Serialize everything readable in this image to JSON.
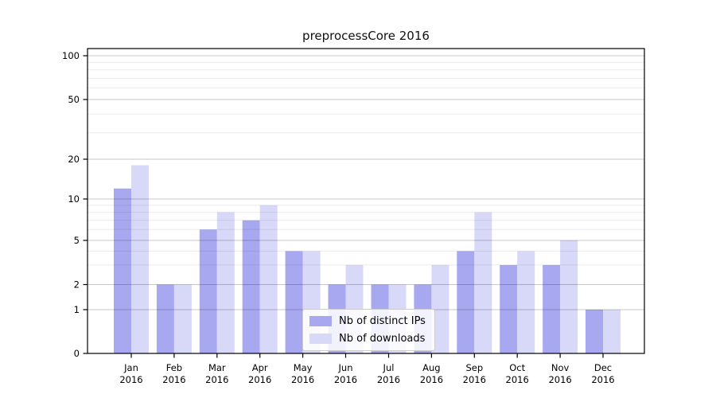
{
  "chart_data": {
    "type": "bar",
    "title": "preprocessCore 2016",
    "year_label": "2016",
    "categories": [
      "Jan",
      "Feb",
      "Mar",
      "Apr",
      "May",
      "Jun",
      "Jul",
      "Aug",
      "Sep",
      "Oct",
      "Nov",
      "Dec"
    ],
    "series": [
      {
        "name": "Nb of distinct IPs",
        "color": "#a8a8f0",
        "values": [
          12,
          2,
          6,
          7,
          4,
          2,
          2,
          2,
          4,
          3,
          3,
          1
        ]
      },
      {
        "name": "Nb of downloads",
        "color": "#d8d8f8",
        "values": [
          18,
          2,
          8,
          9,
          4,
          3,
          2,
          3,
          8,
          4,
          5,
          1
        ]
      }
    ],
    "y_axis": {
      "scale": "log-like",
      "tick_values": [
        0,
        1,
        2,
        5,
        10,
        20,
        50,
        100
      ],
      "minor_grid_values": [
        3,
        4,
        6,
        7,
        8,
        9,
        30,
        40,
        60,
        70,
        80,
        90
      ]
    },
    "legend": {
      "position": "lower-center"
    },
    "grid": true
  },
  "colors": {
    "major_grid": "rgba(0,0,0,0.22)",
    "minor_grid": "rgba(0,0,0,0.08)",
    "axis": "#000000",
    "text": "#000000",
    "background": "#ffffff"
  }
}
